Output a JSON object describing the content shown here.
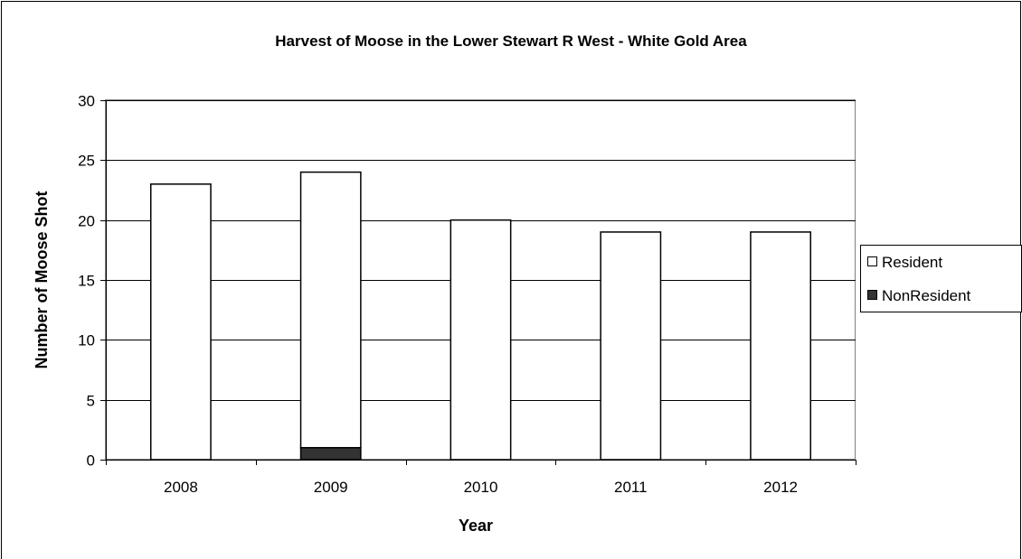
{
  "chart_data": {
    "type": "bar",
    "stacked": true,
    "title": "Harvest of Moose in the Lower Stewart R West - White Gold Area",
    "xlabel": "Year",
    "ylabel": "Number of Moose Shot",
    "categories": [
      "2008",
      "2009",
      "2010",
      "2011",
      "2012"
    ],
    "series": [
      {
        "name": "Resident",
        "values": [
          23,
          23,
          20,
          19,
          19
        ],
        "color": "#ffffff"
      },
      {
        "name": "NonResident",
        "values": [
          0,
          1,
          0,
          0,
          0
        ],
        "color": "#333333"
      }
    ],
    "ylim": [
      0,
      30
    ],
    "yticks": [
      "0",
      "5",
      "10",
      "15",
      "20",
      "25",
      "30"
    ],
    "grid": true,
    "legend": "right"
  }
}
